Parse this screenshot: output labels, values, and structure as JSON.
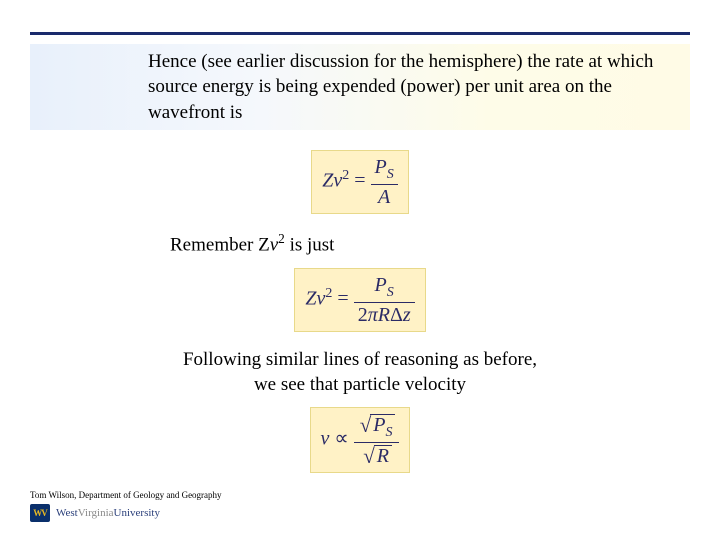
{
  "banner": {
    "text": "Hence (see earlier discussion for the hemisphere) the rate at which source energy is being expended (power) per unit area on the wavefront is"
  },
  "eq1": {
    "lhs_Z": "Z",
    "lhs_v": "v",
    "lhs_exp": "2",
    "eq": " = ",
    "num_P": "P",
    "num_S": "S",
    "den_A": "A"
  },
  "para1": {
    "pre": "Remember Z",
    "v": "v",
    "exp": "2",
    "post": " is just"
  },
  "eq2": {
    "lhs_Z": "Z",
    "lhs_v": "v",
    "lhs_exp": "2",
    "eq": " = ",
    "num_P": "P",
    "num_S": "S",
    "den_2": "2",
    "den_pi": "π",
    "den_R": "R",
    "den_D": "Δ",
    "den_z": "z"
  },
  "para2": {
    "text": "Following similar lines of reasoning as before, we see that particle velocity"
  },
  "eq3": {
    "lhs_v": "v",
    "prop": " ∝ ",
    "num_P": "P",
    "num_S": "S",
    "den_R": "R"
  },
  "footer": {
    "byline": "Tom Wilson, Department of Geology and Geography",
    "logo_west": "West",
    "logo_virginia": "Virginia",
    "logo_univ": "University"
  }
}
